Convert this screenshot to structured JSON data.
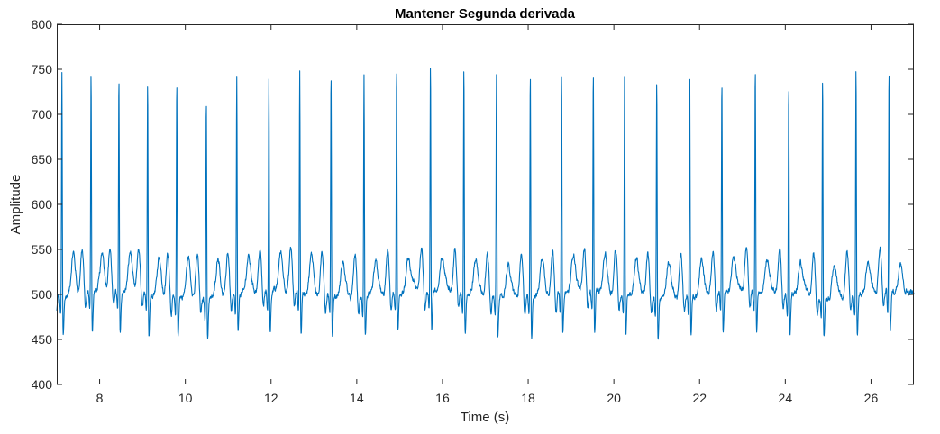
{
  "chart_data": {
    "type": "line",
    "title": "Mantener Segunda derivada",
    "xlabel": "Time (s)",
    "ylabel": "Amplitude",
    "xlim": [
      7,
      27
    ],
    "ylim": [
      400,
      800
    ],
    "xticks": [
      8,
      10,
      12,
      14,
      16,
      18,
      20,
      22,
      24,
      26
    ],
    "yticks": [
      400,
      450,
      500,
      550,
      600,
      650,
      700,
      750,
      800
    ],
    "grid": false,
    "line_color": "#0072BD",
    "series": [
      {
        "name": "",
        "baseline": 500,
        "r_peak_times": [
          7.12,
          7.8,
          8.45,
          9.12,
          9.8,
          10.49,
          11.2,
          11.95,
          12.67,
          13.4,
          14.17,
          14.93,
          15.72,
          16.5,
          17.26,
          18.05,
          18.78,
          19.52,
          20.25,
          21.0,
          21.77,
          22.52,
          23.3,
          24.08,
          24.87,
          25.65,
          26.42
        ],
        "r_peak_values": [
          755,
          753,
          745,
          745,
          750,
          729,
          748,
          742,
          754,
          756,
          755,
          757,
          760,
          761,
          757,
          756,
          753,
          751,
          754,
          752,
          758,
          744,
          758,
          742,
          751,
          759,
          752
        ]
      }
    ]
  }
}
